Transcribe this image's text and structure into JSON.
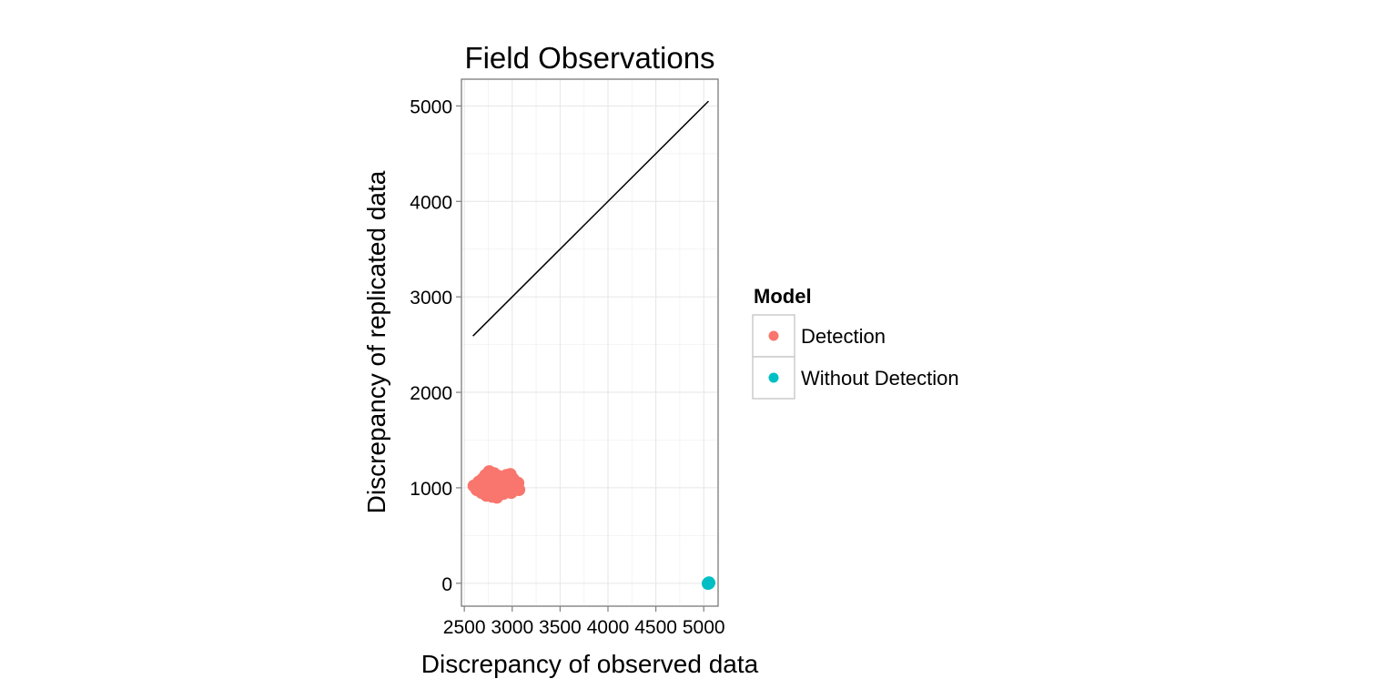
{
  "chart_data": {
    "type": "scatter",
    "title": "Field Observations",
    "xlabel": "Discrepancy of observed data",
    "ylabel": "Discrepancy of replicated data",
    "xlim": [
      2470,
      5150
    ],
    "ylim": [
      -240,
      5280
    ],
    "xticks": [
      2500,
      3000,
      3500,
      4000,
      4500,
      5000
    ],
    "yticks": [
      0,
      1000,
      2000,
      3000,
      4000,
      5000
    ],
    "x_minor_ticks": [
      2750,
      3250,
      3750,
      4250,
      4750
    ],
    "y_minor_ticks": [
      500,
      1500,
      2500,
      3500,
      4500
    ],
    "grid": true,
    "reference_line": {
      "x": [
        2590,
        5050
      ],
      "y": [
        2590,
        5050
      ]
    },
    "legend": {
      "title": "Model",
      "position": "right"
    },
    "series": [
      {
        "name": "Detection",
        "color": "#F8766D",
        "points": [
          [
            2600,
            1020
          ],
          [
            2630,
            980
          ],
          [
            2650,
            1060
          ],
          [
            2660,
            1010
          ],
          [
            2680,
            950
          ],
          [
            2690,
            1090
          ],
          [
            2700,
            1030
          ],
          [
            2710,
            990
          ],
          [
            2720,
            1130
          ],
          [
            2730,
            920
          ],
          [
            2740,
            1060
          ],
          [
            2750,
            1000
          ],
          [
            2760,
            1170
          ],
          [
            2770,
            960
          ],
          [
            2780,
            1100
          ],
          [
            2790,
            910
          ],
          [
            2800,
            1040
          ],
          [
            2810,
            1150
          ],
          [
            2820,
            980
          ],
          [
            2830,
            1080
          ],
          [
            2840,
            900
          ],
          [
            2850,
            1020
          ],
          [
            2860,
            1120
          ],
          [
            2870,
            960
          ],
          [
            2880,
            1060
          ],
          [
            2890,
            990
          ],
          [
            2900,
            1100
          ],
          [
            2910,
            940
          ],
          [
            2920,
            1050
          ],
          [
            2930,
            1000
          ],
          [
            2940,
            1130
          ],
          [
            2950,
            970
          ],
          [
            2960,
            1070
          ],
          [
            2970,
            1010
          ],
          [
            2980,
            1140
          ],
          [
            2990,
            950
          ],
          [
            3000,
            1040
          ],
          [
            3010,
            1090
          ],
          [
            3020,
            990
          ],
          [
            3030,
            1060
          ],
          [
            3040,
            1010
          ],
          [
            3060,
            1050
          ],
          [
            3070,
            980
          ],
          [
            2710,
            1060
          ],
          [
            2760,
            1010
          ],
          [
            2820,
            1040
          ],
          [
            2870,
            1010
          ],
          [
            2930,
            1060
          ],
          [
            2980,
            1020
          ],
          [
            2660,
            1050
          ]
        ]
      },
      {
        "name": "Without Detection",
        "color": "#00BFC4",
        "points": [
          [
            5050,
            0
          ],
          [
            5055,
            5
          ],
          [
            5045,
            -3
          ],
          [
            5052,
            2
          ]
        ]
      }
    ]
  }
}
